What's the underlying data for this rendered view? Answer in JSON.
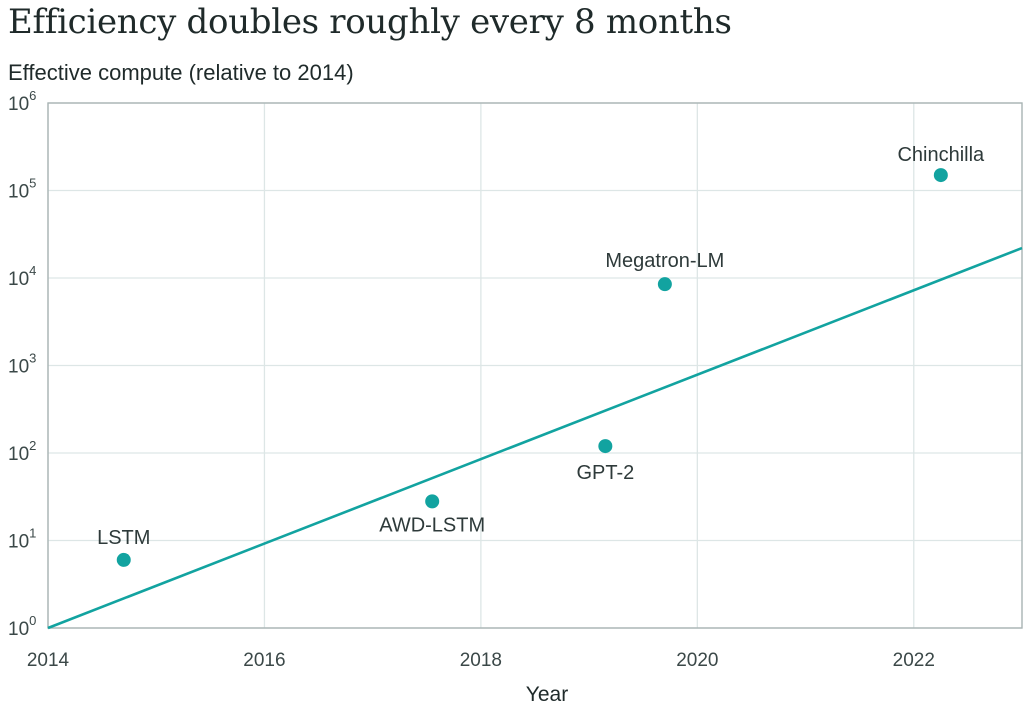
{
  "page": {
    "title": "Efficiency doubles roughly every 8 months"
  },
  "chart_data": {
    "type": "scatter",
    "title": "Efficiency doubles roughly every 8 months",
    "ylabel": "Effective compute (relative to 2014)",
    "xlabel": "Year",
    "xlim": [
      2014,
      2023
    ],
    "ylim": [
      1,
      1000000
    ],
    "yscale": "log",
    "grid": true,
    "x_ticks": [
      "2014",
      "2016",
      "2018",
      "2020",
      "2022"
    ],
    "y_tick_exponents": [
      "0",
      "1",
      "2",
      "3",
      "4",
      "5",
      "6"
    ],
    "points": [
      {
        "label": "LSTM",
        "x": 2014.7,
        "y": 6
      },
      {
        "label": "AWD-LSTM",
        "x": 2017.55,
        "y": 28
      },
      {
        "label": "GPT-2",
        "x": 2019.15,
        "y": 120
      },
      {
        "label": "Megatron-LM",
        "x": 2019.7,
        "y": 8500
      },
      {
        "label": "Chinchilla",
        "x": 2022.25,
        "y": 150000
      }
    ],
    "trend_line": {
      "x": [
        2014,
        2023
      ],
      "y": [
        1,
        22000
      ]
    },
    "colors": {
      "point": "#12a3a0",
      "trend": "#12a3a0",
      "grid": "#dde6e6",
      "frame": "#a9b4b4"
    }
  }
}
